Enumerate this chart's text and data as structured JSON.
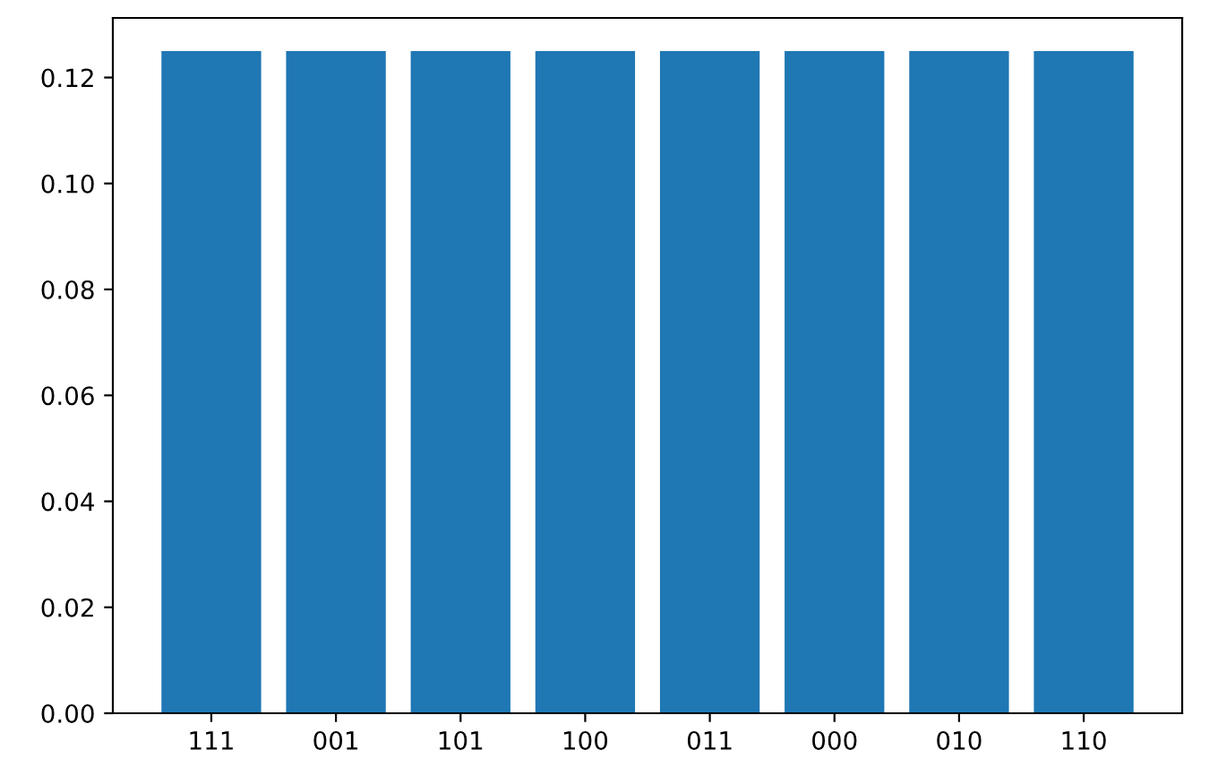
{
  "chart_data": {
    "type": "bar",
    "categories": [
      "111",
      "001",
      "101",
      "100",
      "011",
      "000",
      "010",
      "110"
    ],
    "values": [
      0.125,
      0.125,
      0.125,
      0.125,
      0.125,
      0.125,
      0.125,
      0.125
    ],
    "color": "#1f77b4",
    "ylim": [
      0,
      0.13125
    ],
    "yticks": [
      {
        "value": 0,
        "label": "0.00"
      },
      {
        "value": 0.02,
        "label": "0.02"
      },
      {
        "value": 0.04,
        "label": "0.04"
      },
      {
        "value": 0.06,
        "label": "0.06"
      },
      {
        "value": 0.08,
        "label": "0.08"
      },
      {
        "value": 0.1,
        "label": "0.10"
      },
      {
        "value": 0.12,
        "label": "0.12"
      }
    ],
    "grid": false,
    "legend": false
  }
}
